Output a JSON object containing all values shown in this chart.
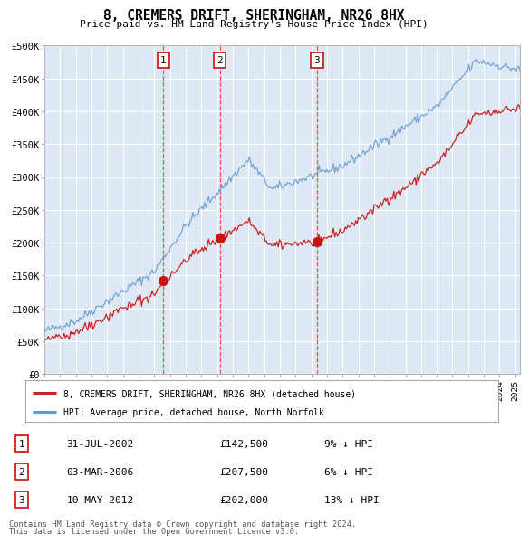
{
  "title": "8, CREMERS DRIFT, SHERINGHAM, NR26 8HX",
  "subtitle": "Price paid vs. HM Land Registry's House Price Index (HPI)",
  "background_color": "#dce9f5",
  "ylim": [
    0,
    500000
  ],
  "yticks": [
    0,
    50000,
    100000,
    150000,
    200000,
    250000,
    300000,
    350000,
    400000,
    450000,
    500000
  ],
  "ytick_labels": [
    "£0",
    "£50K",
    "£100K",
    "£150K",
    "£200K",
    "£250K",
    "£300K",
    "£350K",
    "£400K",
    "£450K",
    "£500K"
  ],
  "xlim_start": 1995.0,
  "xlim_end": 2025.3,
  "sale_years": [
    2002.58,
    2006.17,
    2012.36
  ],
  "sale_prices": [
    142500,
    207500,
    202000
  ],
  "sale_labels": [
    "1",
    "2",
    "3"
  ],
  "legend_entries": [
    "8, CREMERS DRIFT, SHERINGHAM, NR26 8HX (detached house)",
    "HPI: Average price, detached house, North Norfolk"
  ],
  "table_rows": [
    {
      "num": "1",
      "date": "31-JUL-2002",
      "price": "£142,500",
      "hpi": "9% ↓ HPI"
    },
    {
      "num": "2",
      "date": "03-MAR-2006",
      "price": "£207,500",
      "hpi": "6% ↓ HPI"
    },
    {
      "num": "3",
      "date": "10-MAY-2012",
      "price": "£202,000",
      "hpi": "13% ↓ HPI"
    }
  ],
  "footer_line1": "Contains HM Land Registry data © Crown copyright and database right 2024.",
  "footer_line2": "This data is licensed under the Open Government Licence v3.0.",
  "hpi_color": "#6699cc",
  "price_color": "#cc2222",
  "marker_color": "#cc1111",
  "dashed_color": "#ee3333",
  "box_edge_color": "#cc2222",
  "grid_color": "white",
  "spine_color": "#aaaaaa"
}
